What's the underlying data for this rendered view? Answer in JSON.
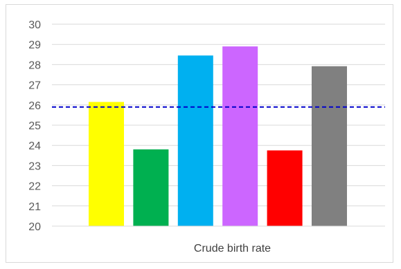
{
  "chart_data": {
    "type": "bar",
    "xlabel": "Crude birth rate",
    "ylim": [
      20,
      30
    ],
    "yticks": [
      20,
      21,
      22,
      23,
      24,
      25,
      26,
      27,
      28,
      29,
      30
    ],
    "grid": true,
    "legend": "none",
    "series": [
      {
        "values": [
          26.15
        ],
        "color": "#ffff00"
      },
      {
        "values": [
          23.8
        ],
        "color": "#00b050"
      },
      {
        "values": [
          28.45
        ],
        "color": "#00b0f0"
      },
      {
        "values": [
          28.9
        ],
        "color": "#cc66ff"
      },
      {
        "values": [
          23.75
        ],
        "color": "#ff0000"
      },
      {
        "values": [
          27.92
        ],
        "color": "#808080"
      }
    ],
    "reference_line": {
      "value": 25.9,
      "color": "#0000cc",
      "style": "dashed"
    }
  }
}
